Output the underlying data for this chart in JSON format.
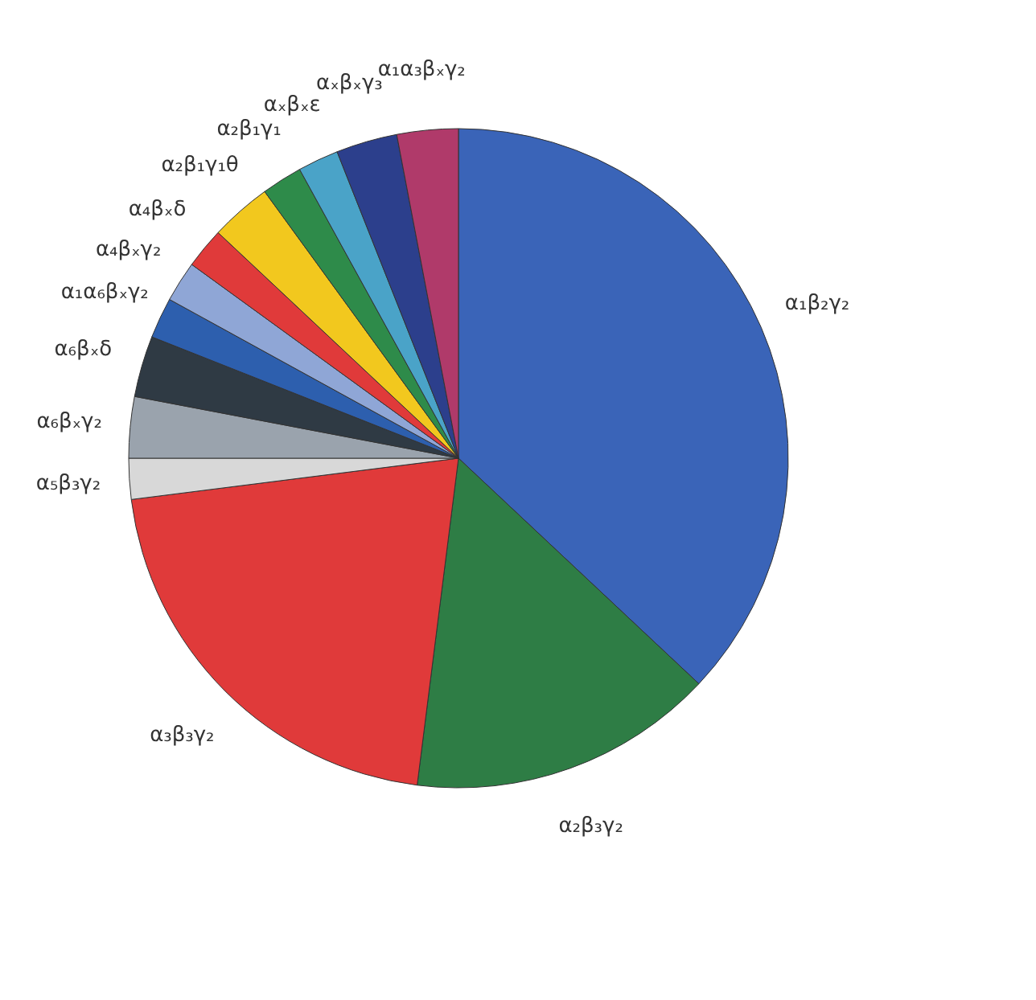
{
  "chart_data": {
    "type": "pie",
    "categories": [
      "α₁β₂γ₂",
      "α₂β₃γ₂",
      "α₃β₃γ₂",
      "α₅β₃γ₂",
      "α₆βₓγ₂",
      "α₆βₓδ",
      "α₁α₆βₓγ₂",
      "α₄βₓγ₂",
      "α₄βₓδ",
      "α₂β₁γ₁θ",
      "α₂β₁γ₁",
      "αₓβₓε",
      "αₓβₓγ₃",
      "α₁α₃βₓγ₂"
    ],
    "values": [
      37,
      15,
      21,
      2,
      3,
      3,
      2,
      2,
      2,
      3,
      2,
      2,
      3,
      3
    ],
    "colors": [
      "#3a64b8",
      "#2e7d45",
      "#e03a3a",
      "#d8d8d8",
      "#9aa3ad",
      "#2f3a44",
      "#2d5fae",
      "#8fa6d6",
      "#e03a3a",
      "#f2c81e",
      "#2e8b4a",
      "#4aa3c8",
      "#2c3f8c",
      "#b03a6a"
    ]
  }
}
